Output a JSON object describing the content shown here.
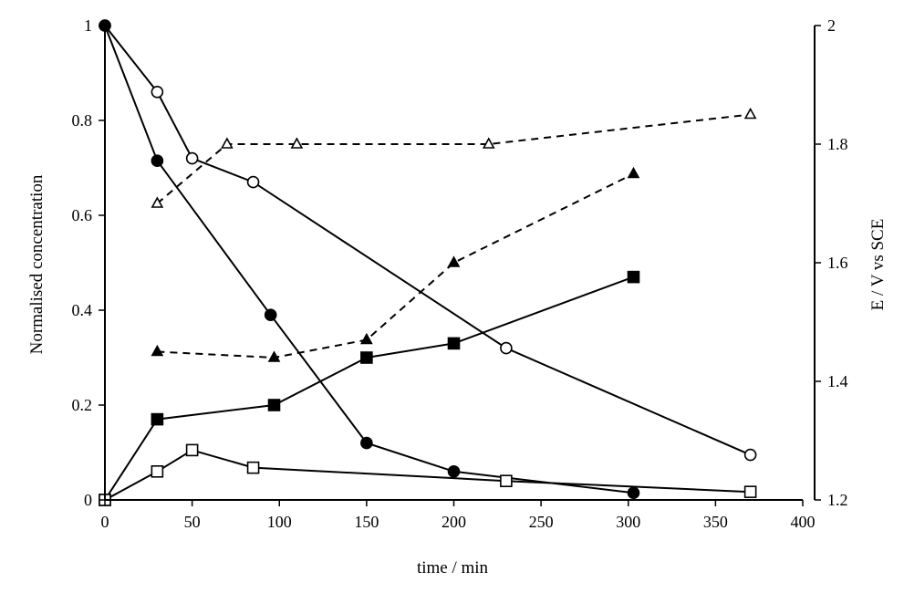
{
  "chart_data": {
    "type": "line",
    "xlabel": "time / min",
    "ylabel": "Normalised concentration",
    "y2label": "E / V vs SCE",
    "xlim": [
      0,
      400
    ],
    "ylim": [
      0,
      1
    ],
    "y2lim": [
      1.2,
      2
    ],
    "xticks": [
      0,
      50,
      100,
      150,
      200,
      250,
      300,
      350,
      400
    ],
    "yticks": [
      0,
      0.2,
      0.4,
      0.6,
      0.8,
      1
    ],
    "y2ticks": [
      1.2,
      1.4,
      1.6,
      1.8,
      2
    ],
    "xtick_labels": [
      "0",
      "50",
      "100",
      "150",
      "200",
      "250",
      "300",
      "350",
      "400"
    ],
    "ytick_labels": [
      "0",
      "0.2",
      "0.4",
      "0.6",
      "0.8",
      "1"
    ],
    "y2tick_labels": [
      "1.2",
      "1.4",
      "1.6",
      "1.8",
      "2"
    ],
    "grid": false,
    "series": [
      {
        "axis": "left",
        "marker": "circle",
        "fill": "none",
        "line": "solid",
        "x": [
          0,
          30,
          50,
          85,
          230,
          370
        ],
        "y": [
          1.0,
          0.86,
          0.72,
          0.67,
          0.32,
          0.095
        ]
      },
      {
        "axis": "left",
        "marker": "circle",
        "fill": "black",
        "line": "solid",
        "x": [
          0,
          30,
          95,
          150,
          200,
          303
        ],
        "y": [
          1.0,
          0.715,
          0.39,
          0.12,
          0.06,
          0.015
        ]
      },
      {
        "axis": "left",
        "marker": "square",
        "fill": "black",
        "line": "solid",
        "x": [
          0,
          30,
          97,
          150,
          200,
          303
        ],
        "y": [
          0.0,
          0.17,
          0.2,
          0.3,
          0.33,
          0.47
        ]
      },
      {
        "axis": "left",
        "marker": "square",
        "fill": "none",
        "line": "solid",
        "x": [
          0,
          30,
          50,
          85,
          230,
          370
        ],
        "y": [
          0.0,
          0.06,
          0.105,
          0.068,
          0.04,
          0.017
        ]
      },
      {
        "axis": "right",
        "marker": "triangle",
        "fill": "none",
        "line": "dashed",
        "x": [
          30,
          70,
          110,
          220,
          370
        ],
        "y": [
          1.7,
          1.8,
          1.8,
          1.8,
          1.85
        ]
      },
      {
        "axis": "right",
        "marker": "triangle",
        "fill": "black",
        "line": "dashed",
        "x": [
          30,
          97,
          150,
          200,
          303
        ],
        "y": [
          1.45,
          1.44,
          1.47,
          1.6,
          1.75
        ]
      }
    ]
  }
}
